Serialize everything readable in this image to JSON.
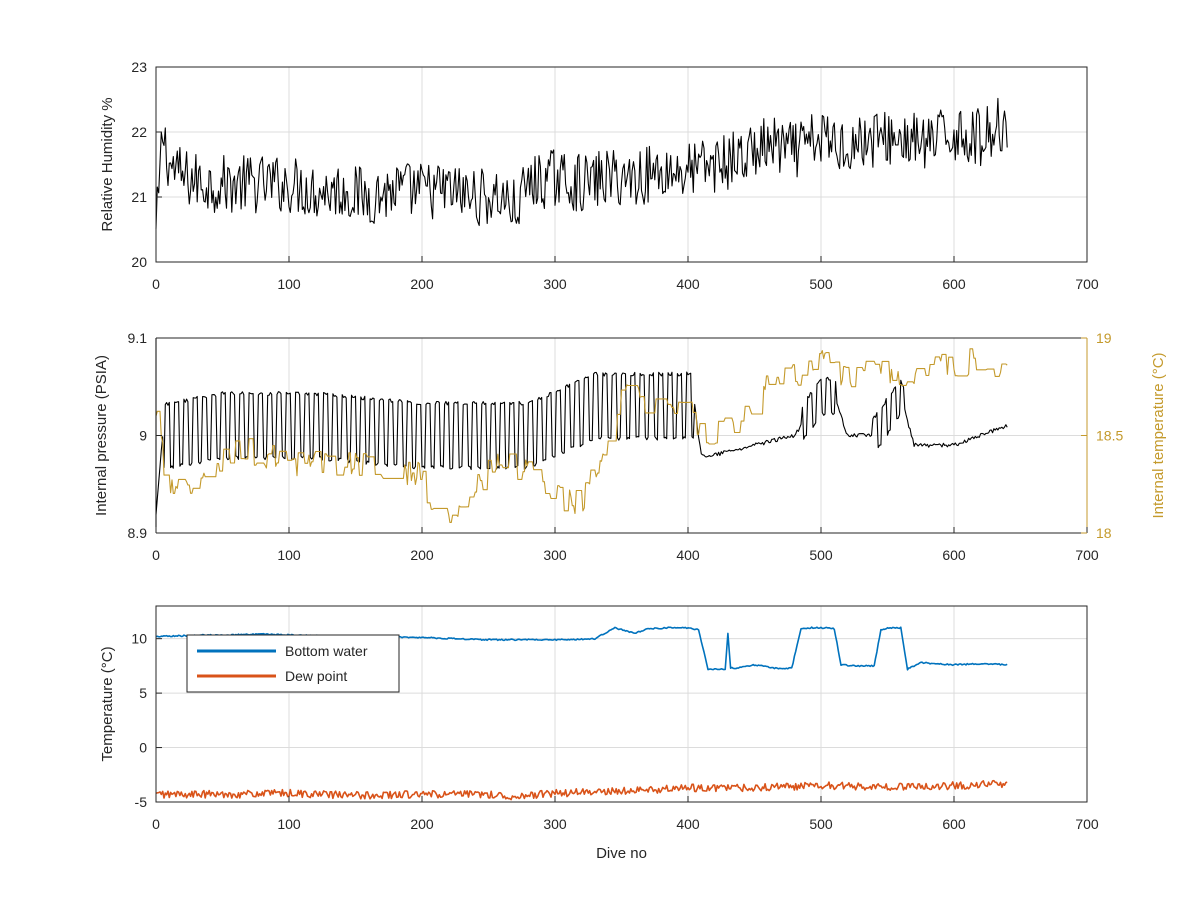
{
  "chart_data": [
    {
      "type": "line",
      "xlabel": "",
      "ylabel": "Relative Humidity %",
      "xlim": [
        0,
        700
      ],
      "ylim": [
        20,
        23
      ],
      "xticks": [
        "0",
        "100",
        "200",
        "300",
        "400",
        "500",
        "600",
        "700"
      ],
      "yticks": [
        "20",
        "21",
        "22",
        "23"
      ],
      "grid": true,
      "series": [
        {
          "color": "#000000",
          "x": [
            0,
            5,
            10,
            20,
            40,
            60,
            80,
            100,
            120,
            140,
            160,
            180,
            200,
            220,
            240,
            260,
            270,
            280,
            300,
            320,
            340,
            360,
            380,
            400,
            420,
            440,
            460,
            480,
            500,
            520,
            540,
            560,
            580,
            600,
            620,
            640
          ],
          "y": [
            20.4,
            22.0,
            21.5,
            21.3,
            21.2,
            21.2,
            21.2,
            21.2,
            21.1,
            21.1,
            21.0,
            21.1,
            21.1,
            21.1,
            21.0,
            21.0,
            20.8,
            21.2,
            21.3,
            21.2,
            21.3,
            21.3,
            21.4,
            21.4,
            21.5,
            21.6,
            21.8,
            21.7,
            21.9,
            21.8,
            21.9,
            21.9,
            21.8,
            22.0,
            21.9,
            22.2
          ],
          "jitter": 0.45
        }
      ]
    },
    {
      "type": "line",
      "xlabel": "",
      "ylabel": "Internal pressure (PSIA)",
      "ylabel_right": "Internal temperature (°C)",
      "xlim": [
        0,
        700
      ],
      "ylim": [
        8.9,
        9.1
      ],
      "ylim_right": [
        18,
        19
      ],
      "xticks": [
        "0",
        "100",
        "200",
        "300",
        "400",
        "500",
        "600",
        "700"
      ],
      "yticks": [
        "8.9",
        "9",
        "9.1"
      ],
      "yticks_right": [
        "18",
        "18.5",
        "19"
      ],
      "grid": true,
      "series": [
        {
          "color": "#000000",
          "axis": "left",
          "x": [
            0,
            5,
            10,
            50,
            60,
            120,
            200,
            260,
            280,
            330,
            340,
            380,
            405,
            410,
            420,
            450,
            480,
            490,
            500,
            510,
            520,
            540,
            560,
            570,
            600,
            620,
            640
          ],
          "y": [
            8.92,
            9.0,
            9.0,
            9.01,
            9.01,
            9.01,
            9.0,
            9.0,
            9.0,
            9.03,
            9.03,
            9.03,
            9.03,
            8.98,
            8.98,
            8.99,
            9.0,
            9.02,
            9.04,
            9.04,
            9.0,
            9.0,
            9.04,
            8.99,
            8.99,
            9.0,
            9.01
          ]
        },
        {
          "color": "#C49A2C",
          "axis": "right",
          "x": [
            0,
            10,
            40,
            60,
            100,
            150,
            200,
            215,
            260,
            300,
            320,
            350,
            400,
            410,
            420,
            440,
            460,
            480,
            500,
            520,
            540,
            560,
            580,
            600,
            620,
            640
          ],
          "y": [
            18.6,
            18.2,
            18.25,
            18.45,
            18.35,
            18.35,
            18.3,
            18.0,
            18.4,
            18.2,
            18.15,
            18.7,
            18.65,
            18.5,
            18.5,
            18.6,
            18.75,
            18.8,
            18.9,
            18.8,
            18.85,
            18.8,
            18.85,
            18.85,
            18.9,
            18.8
          ]
        }
      ]
    },
    {
      "type": "line",
      "xlabel": "Dive no",
      "ylabel": "Temperature (°C)",
      "xlim": [
        0,
        700
      ],
      "ylim": [
        -5,
        13
      ],
      "xticks": [
        "0",
        "100",
        "200",
        "300",
        "400",
        "500",
        "600",
        "700"
      ],
      "yticks": [
        "-5",
        "0",
        "5",
        "10"
      ],
      "grid": true,
      "legend": "top-left",
      "series": [
        {
          "name": "Bottom water",
          "color": "#0072BD",
          "x": [
            0,
            30,
            80,
            110,
            150,
            200,
            250,
            280,
            310,
            330,
            345,
            360,
            370,
            385,
            400,
            408,
            415,
            420,
            428,
            430,
            432,
            436,
            450,
            470,
            478,
            485,
            490,
            505,
            510,
            515,
            525,
            540,
            545,
            550,
            560,
            565,
            575,
            600,
            620,
            640
          ],
          "y": [
            10.2,
            10.3,
            10.4,
            10.3,
            10.2,
            10.1,
            9.9,
            9.9,
            9.9,
            10.0,
            11.0,
            10.5,
            10.9,
            11.0,
            11.0,
            10.8,
            7.2,
            7.2,
            7.2,
            10.5,
            7.3,
            7.3,
            7.6,
            7.2,
            7.3,
            10.9,
            11.0,
            11.0,
            10.9,
            7.6,
            7.5,
            7.5,
            10.8,
            11.0,
            11.0,
            7.2,
            7.8,
            7.6,
            7.7,
            7.6
          ]
        },
        {
          "name": "Dew point",
          "color": "#D95319",
          "x": [
            0,
            50,
            100,
            150,
            200,
            250,
            270,
            300,
            350,
            400,
            450,
            500,
            550,
            600,
            640
          ],
          "y": [
            -4.3,
            -4.3,
            -4.2,
            -4.4,
            -4.3,
            -4.3,
            -4.5,
            -4.2,
            -4.0,
            -3.7,
            -3.7,
            -3.5,
            -3.6,
            -3.5,
            -3.3
          ],
          "jitter": 0.35
        }
      ]
    }
  ]
}
